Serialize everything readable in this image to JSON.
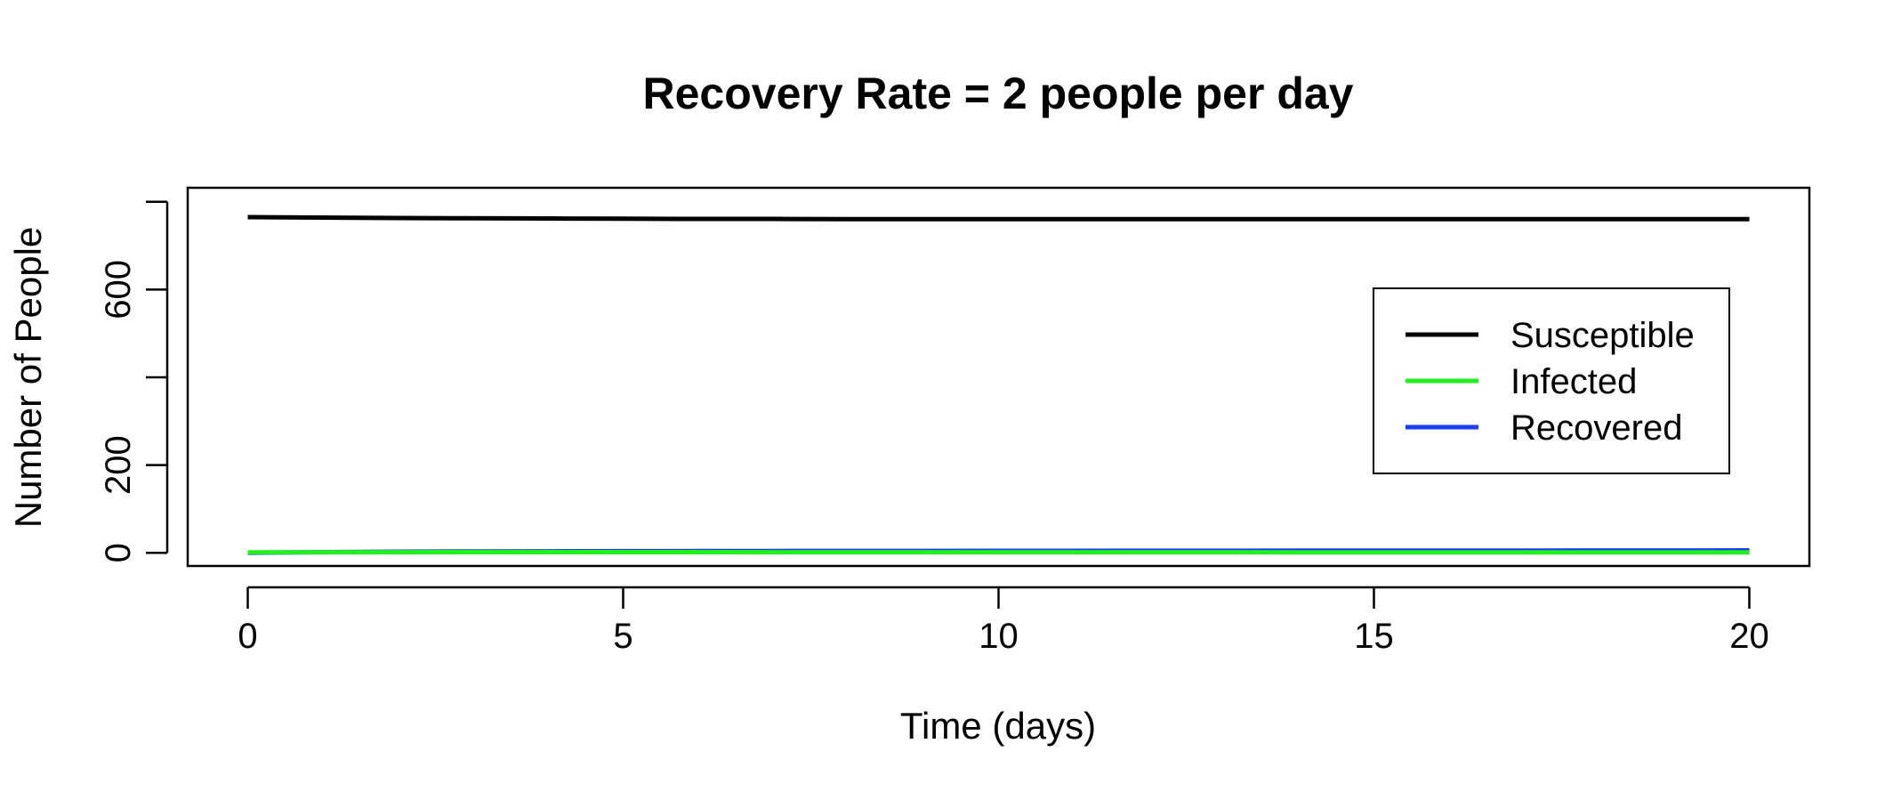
{
  "chart_data": {
    "type": "line",
    "title": "Recovery Rate = 2 people per day",
    "xlabel": "Time (days)",
    "ylabel": "Number of People",
    "xlim": [
      -0.8,
      20.8
    ],
    "ylim": [
      -30,
      832
    ],
    "xticks": [
      0,
      5,
      10,
      15,
      20
    ],
    "yticks": [
      0,
      200,
      400,
      600,
      800
    ],
    "ytick_labels": [
      "0",
      "200",
      "",
      "600",
      ""
    ],
    "grid": false,
    "legend_position": "right",
    "x": [
      0,
      1,
      2,
      3,
      4,
      5,
      6,
      7,
      8,
      9,
      10,
      11,
      12,
      13,
      14,
      15,
      16,
      17,
      18,
      19,
      20
    ],
    "series": [
      {
        "name": "Susceptible",
        "color": "#000000",
        "values": [
          765,
          764,
          763,
          762.5,
          762,
          761.5,
          761,
          761,
          760.5,
          760.5,
          760.5,
          760.5,
          760.5,
          760.5,
          760.5,
          760.5,
          760.5,
          760.5,
          760.5,
          760.5,
          760.5
        ]
      },
      {
        "name": "Infected",
        "color": "#22ee22",
        "values": [
          1,
          1.2,
          1.3,
          1.4,
          1.4,
          1.4,
          1.4,
          1.3,
          1.3,
          1.3,
          1.2,
          1.2,
          1.2,
          1.2,
          1.1,
          1.1,
          1.1,
          1.1,
          1.0,
          1.0,
          1.0
        ]
      },
      {
        "name": "Recovered",
        "color": "#1a3cff",
        "values": [
          0,
          1.5,
          2.5,
          3,
          3.3,
          3.6,
          3.9,
          4.1,
          4.2,
          4.3,
          4.4,
          4.5,
          4.6,
          4.7,
          4.8,
          4.9,
          5,
          5.1,
          5.2,
          5.3,
          5.4
        ]
      }
    ]
  }
}
